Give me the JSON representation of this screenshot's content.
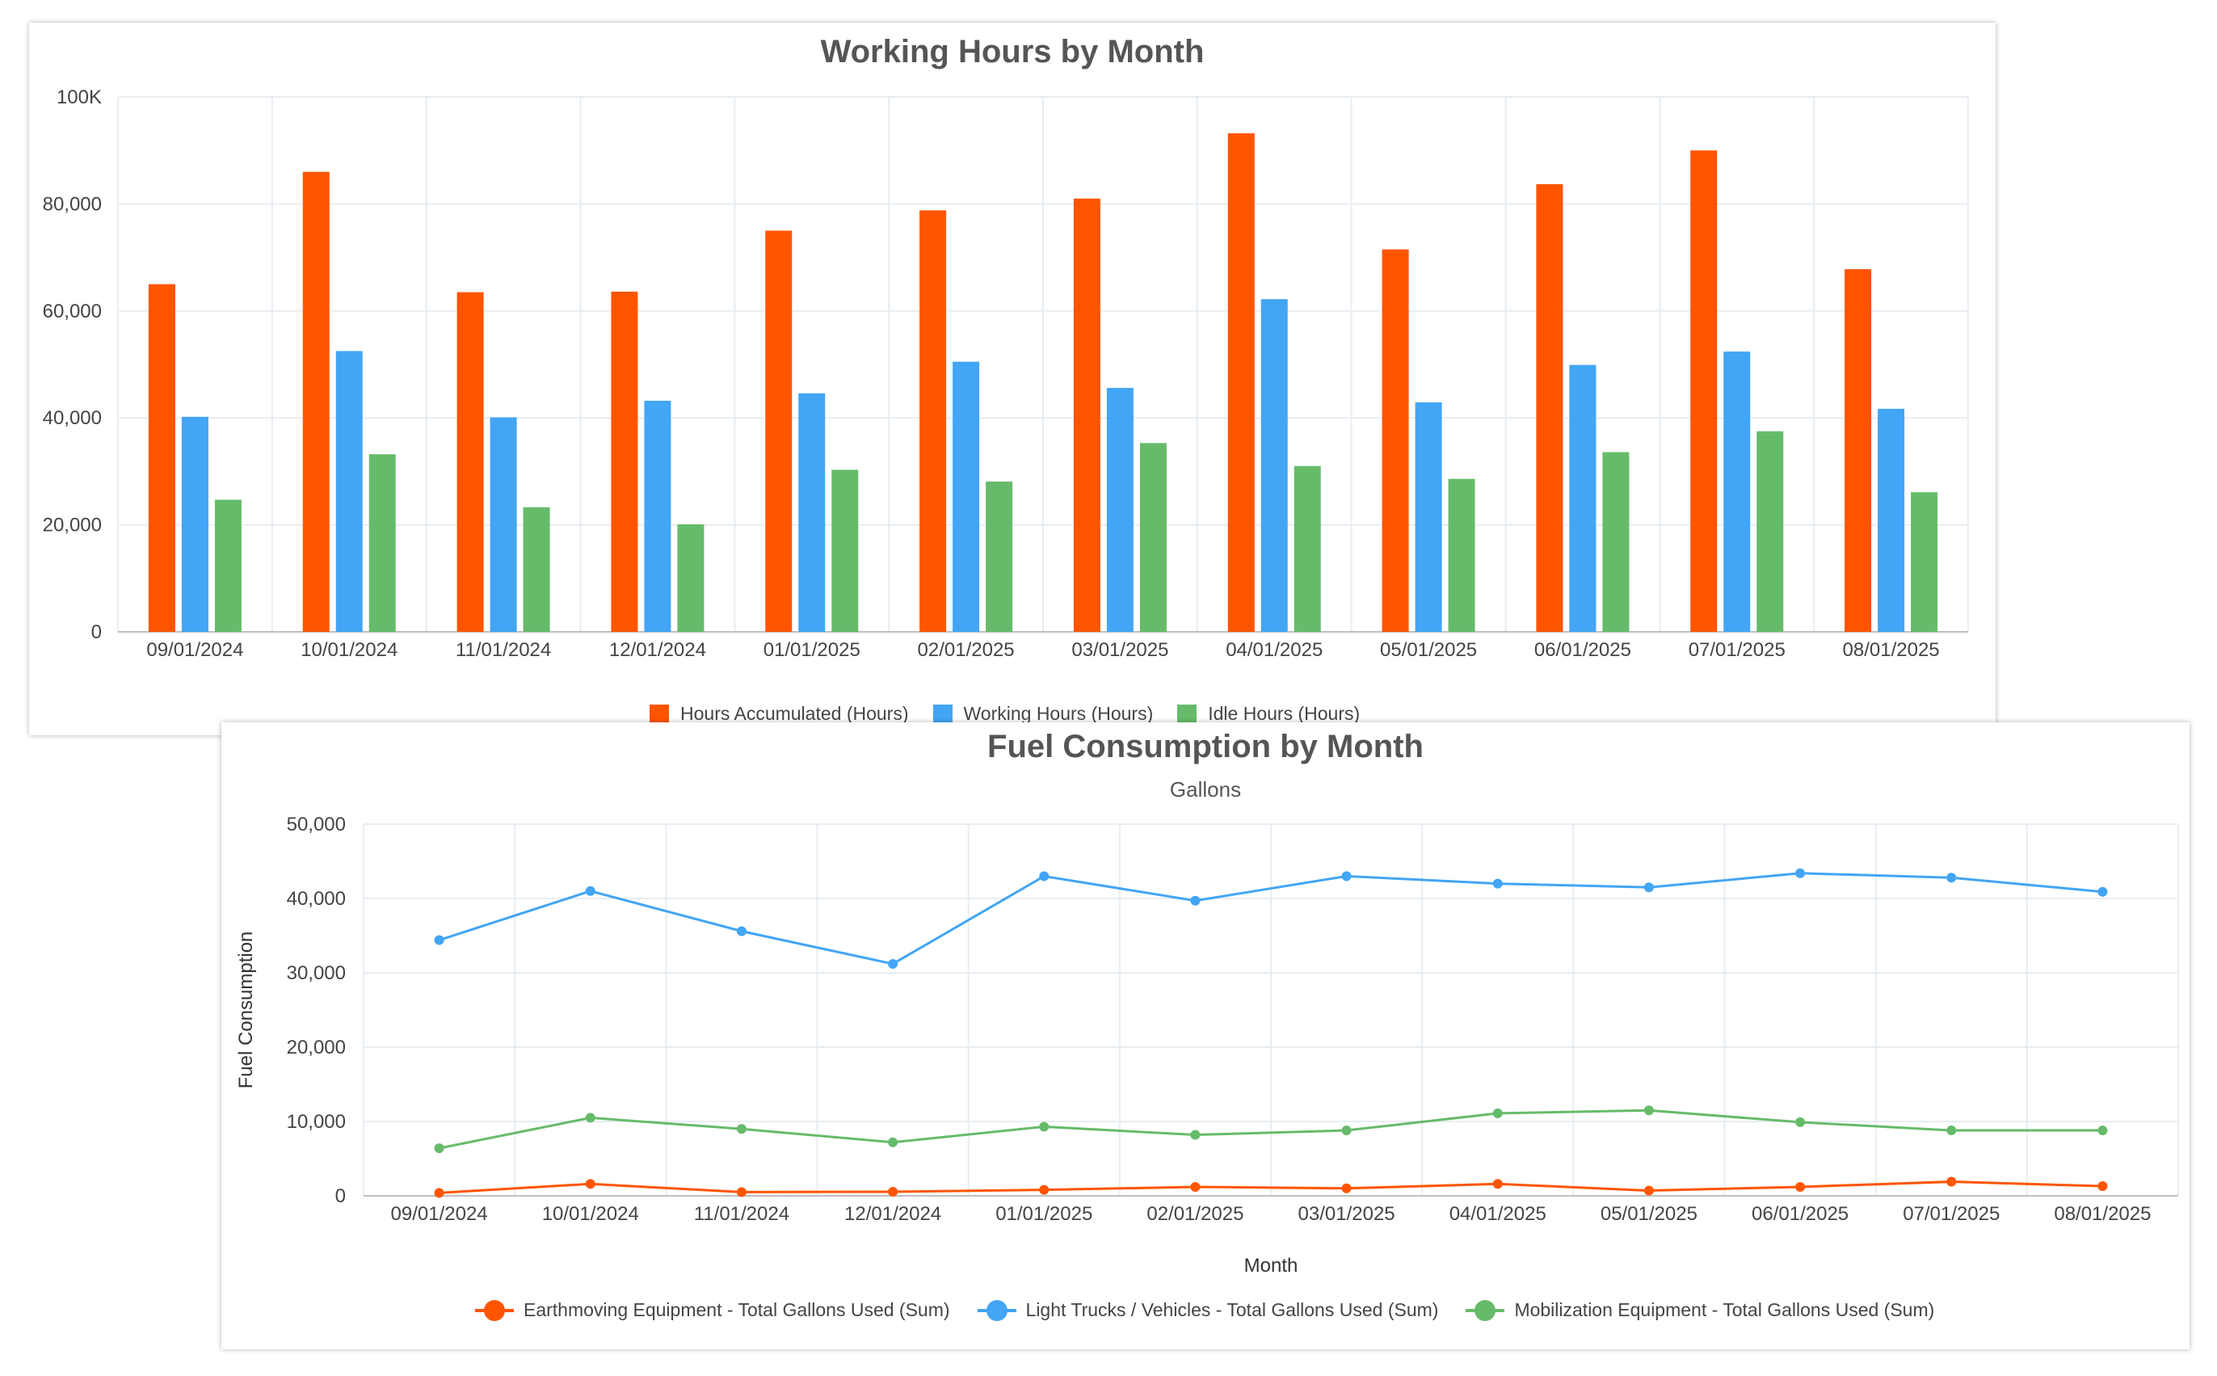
{
  "chart_data": [
    {
      "type": "bar",
      "title": "Working Hours by Month",
      "categories": [
        "09/01/2024",
        "10/01/2024",
        "11/01/2024",
        "12/01/2024",
        "01/01/2025",
        "02/01/2025",
        "03/01/2025",
        "04/01/2025",
        "05/01/2025",
        "06/01/2025",
        "07/01/2025",
        "08/01/2025"
      ],
      "series": [
        {
          "name": "Hours Accumulated (Hours)",
          "color": "#ff5500",
          "values": [
            65000,
            86000,
            63500,
            63600,
            75000,
            78800,
            81000,
            93200,
            71500,
            83700,
            90000,
            67800
          ]
        },
        {
          "name": "Working Hours (Hours)",
          "color": "#42a5f5",
          "values": [
            40200,
            52500,
            40100,
            43200,
            44600,
            50500,
            45600,
            62200,
            42900,
            49900,
            52400,
            41700
          ]
        },
        {
          "name": "Idle Hours (Hours)",
          "color": "#66bb6a",
          "values": [
            24700,
            33200,
            23300,
            20100,
            30300,
            28100,
            35300,
            31000,
            28600,
            33600,
            37500,
            26100
          ]
        }
      ],
      "ylim": [
        0,
        100000
      ],
      "yticks": [
        0,
        20000,
        40000,
        60000,
        80000,
        100000
      ],
      "ytick_labels": [
        "0",
        "20,000",
        "40,000",
        "60,000",
        "80,000",
        "100K"
      ],
      "legend": "bottom",
      "grid": true
    },
    {
      "type": "line",
      "title": "Fuel Consumption by Month",
      "subtitle": "Gallons",
      "xlabel": "Month",
      "ylabel": "Fuel Consumption",
      "categories": [
        "09/01/2024",
        "10/01/2024",
        "11/01/2024",
        "12/01/2024",
        "01/01/2025",
        "02/01/2025",
        "03/01/2025",
        "04/01/2025",
        "05/01/2025",
        "06/01/2025",
        "07/01/2025",
        "08/01/2025"
      ],
      "series": [
        {
          "name": "Earthmoving Equipment - Total Gallons Used (Sum)",
          "color": "#ff5500",
          "values": [
            400,
            1600,
            500,
            550,
            800,
            1200,
            1000,
            1600,
            700,
            1200,
            1900,
            1300
          ]
        },
        {
          "name": "Light Trucks / Vehicles - Total Gallons Used (Sum)",
          "color": "#42a5f5",
          "values": [
            34400,
            41000,
            35600,
            31200,
            43000,
            39700,
            43000,
            42000,
            41500,
            43400,
            42800,
            40900
          ]
        },
        {
          "name": "Mobilization Equipment - Total Gallons Used (Sum)",
          "color": "#66bb6a",
          "values": [
            6400,
            10500,
            9000,
            7200,
            9300,
            8200,
            8800,
            11100,
            11500,
            9900,
            8800,
            8800
          ]
        }
      ],
      "ylim": [
        0,
        50000
      ],
      "yticks": [
        0,
        10000,
        20000,
        30000,
        40000,
        50000
      ],
      "ytick_labels": [
        "0",
        "10,000",
        "20,000",
        "30,000",
        "40,000",
        "50,000"
      ],
      "legend": "bottom",
      "grid": true
    }
  ]
}
